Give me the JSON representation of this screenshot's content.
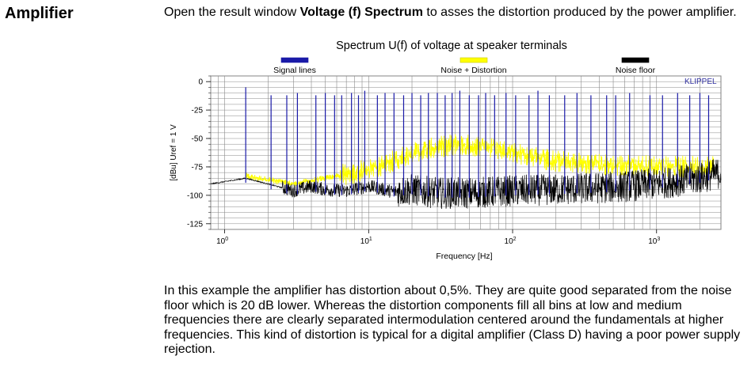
{
  "section_heading": "Amplifier",
  "intro": {
    "pre": "Open the result window ",
    "bold": "Voltage (f) Spectrum",
    "post": " to asses the distortion produced by the power amplifier."
  },
  "chart_data": {
    "type": "line",
    "title": "Spectrum U(f) of voltage at speaker terminals",
    "xlabel": "Frequency [Hz]",
    "ylabel": "[dBu]   Uref = 1 V",
    "xscale": "log",
    "xlim": [
      0.8,
      2800
    ],
    "ylim": [
      -130,
      5
    ],
    "yticks": [
      0,
      -25,
      -50,
      -75,
      -100,
      -125
    ],
    "xticks": [
      {
        "value": 1,
        "base": "10",
        "exp": "0"
      },
      {
        "value": 10,
        "base": "10",
        "exp": "1"
      },
      {
        "value": 100,
        "base": "10",
        "exp": "2"
      },
      {
        "value": 1000,
        "base": "10",
        "exp": "3"
      }
    ],
    "watermark": "KLIPPEL",
    "grid": true,
    "legend_position": "top",
    "series": [
      {
        "name": "Signal lines",
        "color": "#1a1aa8",
        "x": [
          1.4,
          2.1,
          2.7,
          3.2,
          4.3,
          5.0,
          5.8,
          6.5,
          7.6,
          8.5,
          9.4,
          11.5,
          13,
          15,
          17.5,
          20,
          23,
          26,
          30,
          34,
          38,
          43,
          50,
          58,
          65,
          75,
          90,
          105,
          130,
          150,
          180,
          230,
          280,
          350,
          450,
          520,
          650,
          900,
          1100,
          1400,
          1700,
          2000,
          2300
        ],
        "y": [
          -5,
          -12,
          -12,
          -10,
          -12,
          -10,
          -12,
          -12,
          -10,
          -12,
          -8,
          -12,
          -10,
          -10,
          -12,
          -10,
          -12,
          -10,
          -10,
          -12,
          -10,
          -8,
          -12,
          -12,
          -10,
          -12,
          -10,
          -12,
          -12,
          -8,
          -12,
          -12,
          -10,
          -12,
          -12,
          -12,
          -10,
          -12,
          -12,
          -10,
          -12,
          -10,
          -12
        ]
      },
      {
        "name": "Noise + Distortion",
        "color": "#ffff00",
        "x": [
          1.4,
          3,
          5,
          8,
          12,
          18,
          25,
          40,
          60,
          100,
          200,
          400,
          800,
          1500,
          2500
        ],
        "y": [
          -83,
          -90,
          -85,
          -80,
          -75,
          -65,
          -60,
          -55,
          -57,
          -62,
          -70,
          -73,
          -74,
          -75,
          -74
        ]
      },
      {
        "name": "Noise floor",
        "color": "#000000",
        "x": [
          0.8,
          1.4,
          2,
          3,
          4,
          5,
          7,
          10,
          15,
          20,
          30,
          50,
          100,
          200,
          500,
          1000,
          2000,
          2800
        ],
        "y": [
          -90,
          -85,
          -90,
          -96,
          -92,
          -95,
          -96,
          -92,
          -97,
          -95,
          -98,
          -98,
          -96,
          -95,
          -93,
          -90,
          -85,
          -80
        ]
      }
    ]
  },
  "outro": "In this example the amplifier has distortion about 0,5%. They are quite good separated from the noise floor which is 20 dB lower. Whereas the distortion components fill all bins at low and medium frequencies there are clearly separated intermodulation centered around the fundamentals at higher frequencies. This kind of distortion is typical for a digital amplifier (Class D) having a poor power supply rejection."
}
